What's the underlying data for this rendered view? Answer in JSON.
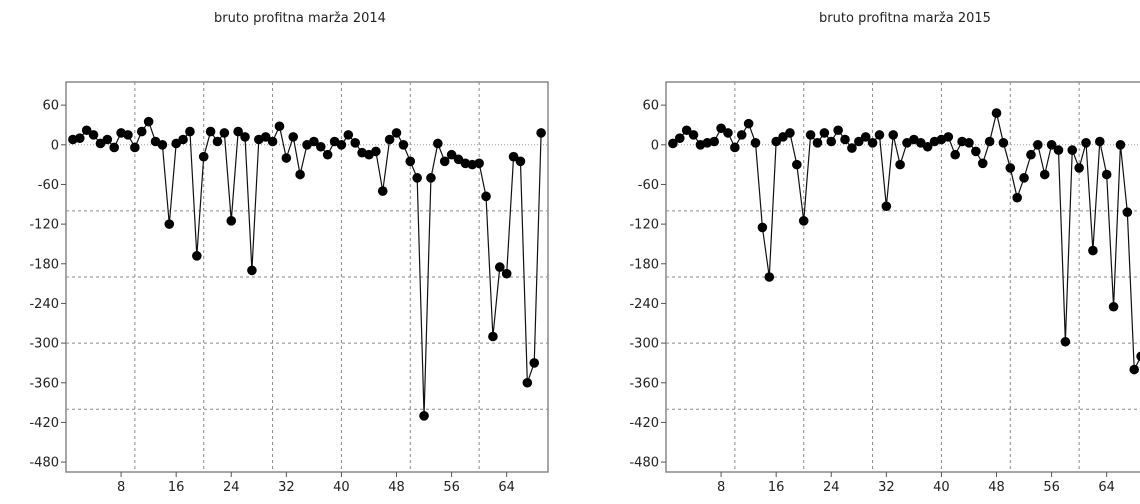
{
  "chart_data": [
    {
      "type": "line",
      "title": "bruto profitna marža 2014",
      "xlabel": "",
      "ylabel": "",
      "xlim": [
        0,
        70
      ],
      "ylim": [
        -495,
        95
      ],
      "x_ticks": [
        8,
        16,
        24,
        32,
        40,
        48,
        56,
        64
      ],
      "y_ticks": [
        60,
        0,
        -60,
        -120,
        -180,
        -240,
        -300,
        -360,
        -420,
        -480
      ],
      "grid": {
        "vertical_dashed_at_x": [
          10,
          20,
          30,
          40,
          50,
          60
        ],
        "horizontal_dashed_at_y": [
          -100,
          -200,
          -300,
          -400
        ],
        "zero_line_dotted": true
      },
      "series": [
        {
          "x": [
            1,
            2,
            3,
            4,
            5,
            6,
            7,
            8,
            9,
            10,
            11,
            12,
            13,
            14,
            15,
            16,
            17,
            18,
            19,
            20,
            21,
            22,
            23,
            24,
            25,
            26,
            27,
            28,
            29,
            30,
            31,
            32,
            33,
            34,
            35,
            36,
            37,
            38,
            39,
            40,
            41,
            42,
            43,
            44,
            45,
            46,
            47,
            48,
            49,
            50,
            51,
            52,
            53,
            54,
            55,
            56,
            57,
            58,
            59,
            60,
            61,
            62,
            63,
            64,
            65,
            66,
            67,
            68,
            69
          ],
          "values": [
            8,
            10,
            22,
            15,
            2,
            8,
            -4,
            18,
            15,
            -4,
            20,
            35,
            5,
            0,
            -120,
            2,
            8,
            20,
            -168,
            -18,
            20,
            5,
            18,
            -115,
            20,
            12,
            -190,
            8,
            12,
            5,
            28,
            -20,
            12,
            -45,
            0,
            5,
            -3,
            -15,
            5,
            0,
            15,
            3,
            -12,
            -15,
            -10,
            -70,
            8,
            18,
            0,
            -25,
            -50,
            -410,
            -50,
            2,
            -25,
            -15,
            -22,
            -28,
            -30,
            -28,
            -78,
            -290,
            -185,
            -195,
            -18,
            -25,
            -360,
            -330,
            18
          ]
        }
      ]
    },
    {
      "type": "line",
      "title": "bruto profitna marža 2015",
      "xlabel": "",
      "ylabel": "",
      "xlim": [
        0,
        70
      ],
      "ylim": [
        -495,
        95
      ],
      "x_ticks": [
        8,
        16,
        24,
        32,
        40,
        48,
        56,
        64
      ],
      "y_ticks": [
        60,
        0,
        -60,
        -120,
        -180,
        -240,
        -300,
        -360,
        -420,
        -480
      ],
      "grid": {
        "vertical_dashed_at_x": [
          10,
          20,
          30,
          40,
          50,
          60
        ],
        "horizontal_dashed_at_y": [
          -100,
          -200,
          -300,
          -400
        ],
        "zero_line_dotted": true
      },
      "series": [
        {
          "x": [
            1,
            2,
            3,
            4,
            5,
            6,
            7,
            8,
            9,
            10,
            11,
            12,
            13,
            14,
            15,
            16,
            17,
            18,
            19,
            20,
            21,
            22,
            23,
            24,
            25,
            26,
            27,
            28,
            29,
            30,
            31,
            32,
            33,
            34,
            35,
            36,
            37,
            38,
            39,
            40,
            41,
            42,
            43,
            44,
            45,
            46,
            47,
            48,
            49,
            50,
            51,
            52,
            53,
            54,
            55,
            56,
            57,
            58,
            59,
            60,
            61,
            62,
            63,
            64,
            65,
            66,
            67,
            68,
            69
          ],
          "values": [
            2,
            10,
            22,
            15,
            0,
            3,
            5,
            25,
            18,
            -4,
            15,
            32,
            3,
            -125,
            -200,
            5,
            12,
            18,
            -30,
            -115,
            15,
            3,
            18,
            5,
            22,
            8,
            -5,
            5,
            12,
            3,
            15,
            -93,
            15,
            -30,
            3,
            8,
            3,
            -3,
            5,
            8,
            12,
            -15,
            5,
            3,
            -10,
            -28,
            5,
            48,
            3,
            -35,
            -80,
            -50,
            -15,
            0,
            -45,
            0,
            -8,
            -298,
            -8,
            -35,
            3,
            -160,
            5,
            -45,
            -245,
            0,
            -102,
            -340,
            -320
          ]
        }
      ]
    }
  ]
}
